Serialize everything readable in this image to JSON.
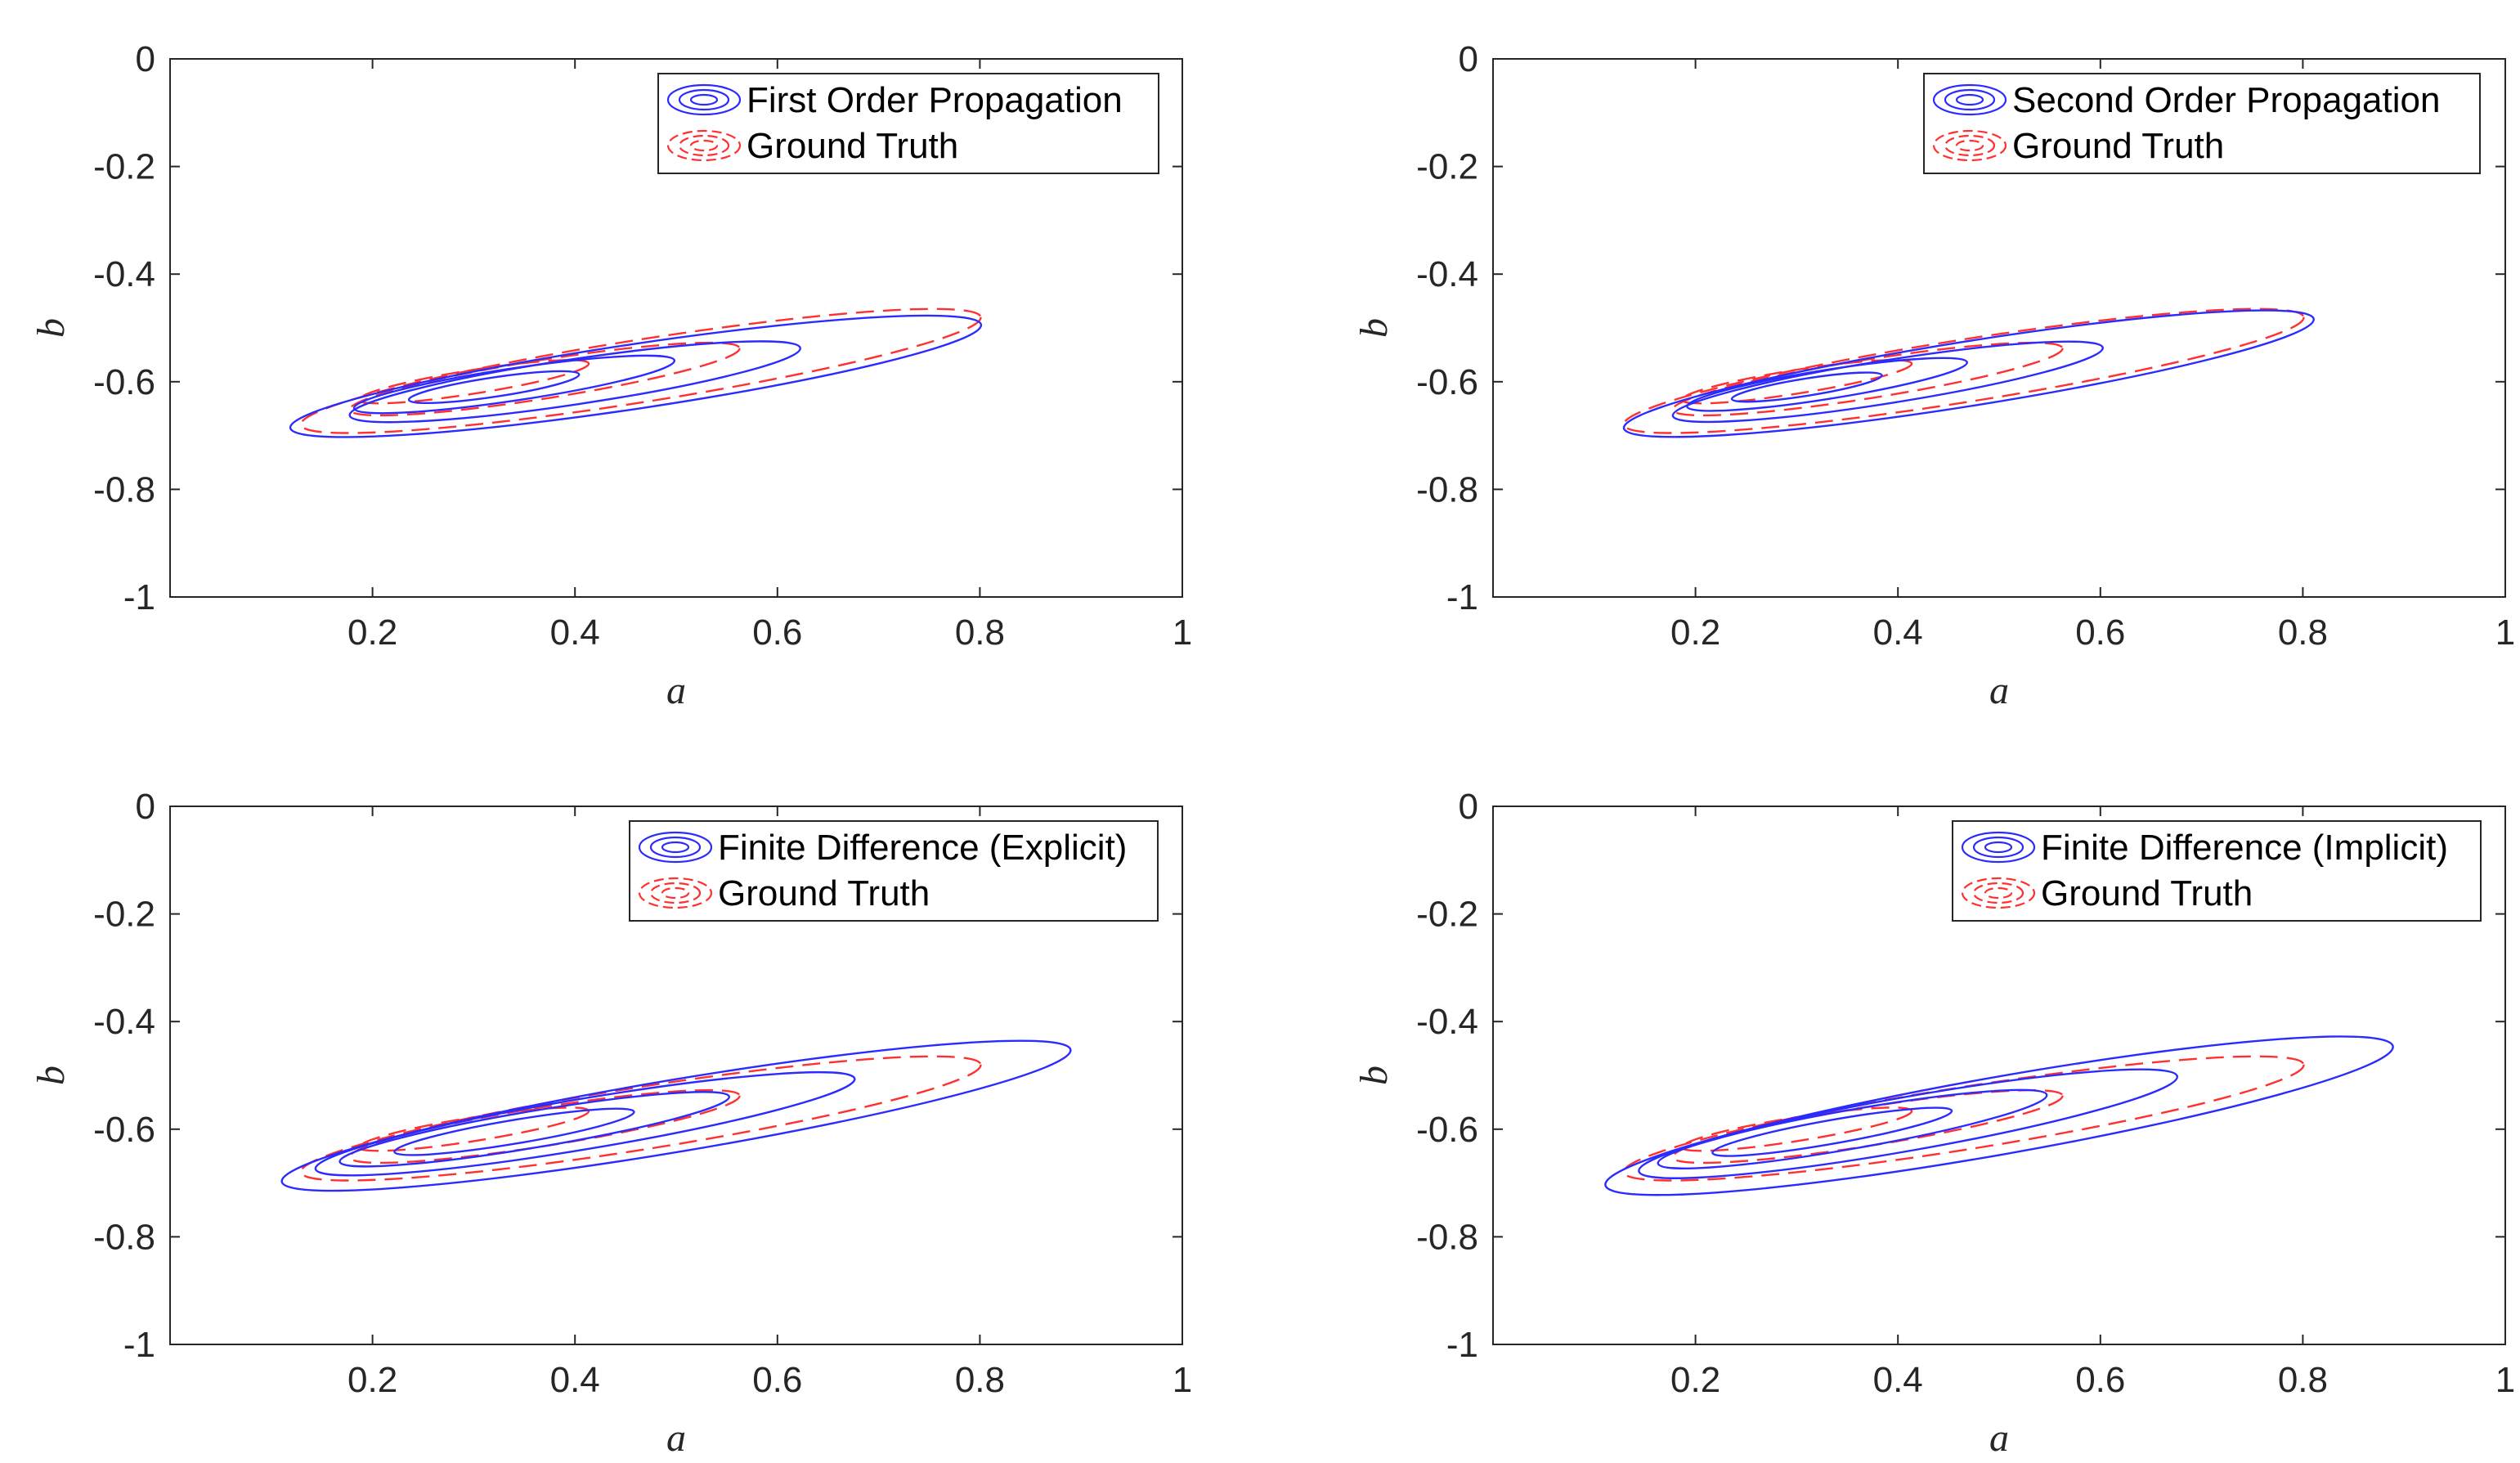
{
  "chart_data": [
    {
      "type": "contour",
      "xlabel": "a",
      "ylabel": "b",
      "xlim": [
        0,
        1
      ],
      "ylim": [
        -1,
        0
      ],
      "xticks": [
        "0.2",
        "0.4",
        "0.6",
        "0.8",
        "1"
      ],
      "yticks": [
        "0",
        "-0.2",
        "-0.4",
        "-0.6",
        "-0.8",
        "-1"
      ],
      "legend_position": "top-right",
      "series": [
        {
          "name": "First Order Propagation",
          "style": "solid",
          "color": "#2b2bff",
          "contours": [
            {
              "center": [
                0.46,
                -0.59
              ],
              "semi_axes": [
                0.345,
                0.06
              ],
              "angle_deg": 8.5
            },
            {
              "center": [
                0.4,
                -0.6
              ],
              "semi_axes": [
                0.225,
                0.042
              ],
              "angle_deg": 8.5
            },
            {
              "center": [
                0.34,
                -0.605
              ],
              "semi_axes": [
                0.16,
                0.03
              ],
              "angle_deg": 8.5
            },
            {
              "center": [
                0.32,
                -0.61
              ],
              "semi_axes": [
                0.085,
                0.018
              ],
              "angle_deg": 8.5
            }
          ]
        },
        {
          "name": "Ground Truth",
          "style": "dashed",
          "color": "#ff3030",
          "contours": [
            {
              "center": [
                0.465,
                -0.58
              ],
              "semi_axes": [
                0.34,
                0.058
              ],
              "angle_deg": 9
            },
            {
              "center": [
                0.37,
                -0.595
              ],
              "semi_axes": [
                0.195,
                0.036
              ],
              "angle_deg": 9
            },
            {
              "center": [
                0.3,
                -0.6
              ],
              "semi_axes": [
                0.115,
                0.022
              ],
              "angle_deg": 9
            }
          ]
        }
      ]
    },
    {
      "type": "contour",
      "xlabel": "a",
      "ylabel": "b",
      "xlim": [
        0,
        1
      ],
      "ylim": [
        -1,
        0
      ],
      "xticks": [
        "0.2",
        "0.4",
        "0.6",
        "0.8",
        "1"
      ],
      "yticks": [
        "0",
        "-0.2",
        "-0.4",
        "-0.6",
        "-0.8",
        "-1"
      ],
      "legend_position": "top-right",
      "series": [
        {
          "name": "Second Order Propagation",
          "style": "solid",
          "color": "#2b2bff",
          "contours": [
            {
              "center": [
                0.47,
                -0.585
              ],
              "semi_axes": [
                0.345,
                0.06
              ],
              "angle_deg": 9
            },
            {
              "center": [
                0.39,
                -0.6
              ],
              "semi_axes": [
                0.215,
                0.04
              ],
              "angle_deg": 9
            },
            {
              "center": [
                0.33,
                -0.605
              ],
              "semi_axes": [
                0.14,
                0.027
              ],
              "angle_deg": 9
            },
            {
              "center": [
                0.31,
                -0.61
              ],
              "semi_axes": [
                0.075,
                0.016
              ],
              "angle_deg": 9
            }
          ]
        },
        {
          "name": "Ground Truth",
          "style": "dashed",
          "color": "#ff3030",
          "contours": [
            {
              "center": [
                0.465,
                -0.58
              ],
              "semi_axes": [
                0.34,
                0.058
              ],
              "angle_deg": 9
            },
            {
              "center": [
                0.37,
                -0.595
              ],
              "semi_axes": [
                0.195,
                0.036
              ],
              "angle_deg": 9
            },
            {
              "center": [
                0.3,
                -0.6
              ],
              "semi_axes": [
                0.115,
                0.022
              ],
              "angle_deg": 9
            }
          ]
        }
      ]
    },
    {
      "type": "contour",
      "xlabel": "a",
      "ylabel": "b",
      "xlim": [
        0,
        1
      ],
      "ylim": [
        -1,
        0
      ],
      "xticks": [
        "0.2",
        "0.4",
        "0.6",
        "0.8",
        "1"
      ],
      "yticks": [
        "0",
        "-0.2",
        "-0.4",
        "-0.6",
        "-0.8",
        "-1"
      ],
      "legend_position": "top-right",
      "series": [
        {
          "name": "Finite Difference (Explicit)",
          "style": "solid",
          "color": "#2b2bff",
          "contours": [
            {
              "center": [
                0.5,
                -0.575
              ],
              "semi_axes": [
                0.395,
                0.067
              ],
              "angle_deg": 9.5
            },
            {
              "center": [
                0.41,
                -0.59
              ],
              "semi_axes": [
                0.27,
                0.047
              ],
              "angle_deg": 9.5
            },
            {
              "center": [
                0.36,
                -0.6
              ],
              "semi_axes": [
                0.195,
                0.034
              ],
              "angle_deg": 9.5
            },
            {
              "center": [
                0.34,
                -0.605
              ],
              "semi_axes": [
                0.12,
                0.022
              ],
              "angle_deg": 9.5
            }
          ]
        },
        {
          "name": "Ground Truth",
          "style": "dashed",
          "color": "#ff3030",
          "contours": [
            {
              "center": [
                0.465,
                -0.58
              ],
              "semi_axes": [
                0.34,
                0.058
              ],
              "angle_deg": 9
            },
            {
              "center": [
                0.37,
                -0.595
              ],
              "semi_axes": [
                0.195,
                0.036
              ],
              "angle_deg": 9
            },
            {
              "center": [
                0.3,
                -0.6
              ],
              "semi_axes": [
                0.115,
                0.022
              ],
              "angle_deg": 9
            }
          ]
        }
      ]
    },
    {
      "type": "contour",
      "xlabel": "a",
      "ylabel": "b",
      "xlim": [
        0,
        1
      ],
      "ylim": [
        -1,
        0
      ],
      "xticks": [
        "0.2",
        "0.4",
        "0.6",
        "0.8",
        "1"
      ],
      "yticks": [
        "0",
        "-0.2",
        "-0.4",
        "-0.6",
        "-0.8",
        "-1"
      ],
      "legend_position": "top-right",
      "series": [
        {
          "name": "Finite Difference (Implicit)",
          "style": "solid",
          "color": "#2b2bff",
          "contours": [
            {
              "center": [
                0.5,
                -0.575
              ],
              "semi_axes": [
                0.395,
                0.072
              ],
              "angle_deg": 10
            },
            {
              "center": [
                0.41,
                -0.59
              ],
              "semi_axes": [
                0.27,
                0.05
              ],
              "angle_deg": 10
            },
            {
              "center": [
                0.355,
                -0.6
              ],
              "semi_axes": [
                0.195,
                0.036
              ],
              "angle_deg": 10
            },
            {
              "center": [
                0.335,
                -0.605
              ],
              "semi_axes": [
                0.12,
                0.022
              ],
              "angle_deg": 10
            }
          ]
        },
        {
          "name": "Ground Truth",
          "style": "dashed",
          "color": "#ff3030",
          "contours": [
            {
              "center": [
                0.465,
                -0.58
              ],
              "semi_axes": [
                0.34,
                0.058
              ],
              "angle_deg": 9
            },
            {
              "center": [
                0.37,
                -0.595
              ],
              "semi_axes": [
                0.195,
                0.036
              ],
              "angle_deg": 9
            },
            {
              "center": [
                0.3,
                -0.6
              ],
              "semi_axes": [
                0.115,
                0.022
              ],
              "angle_deg": 9
            }
          ]
        }
      ]
    }
  ]
}
